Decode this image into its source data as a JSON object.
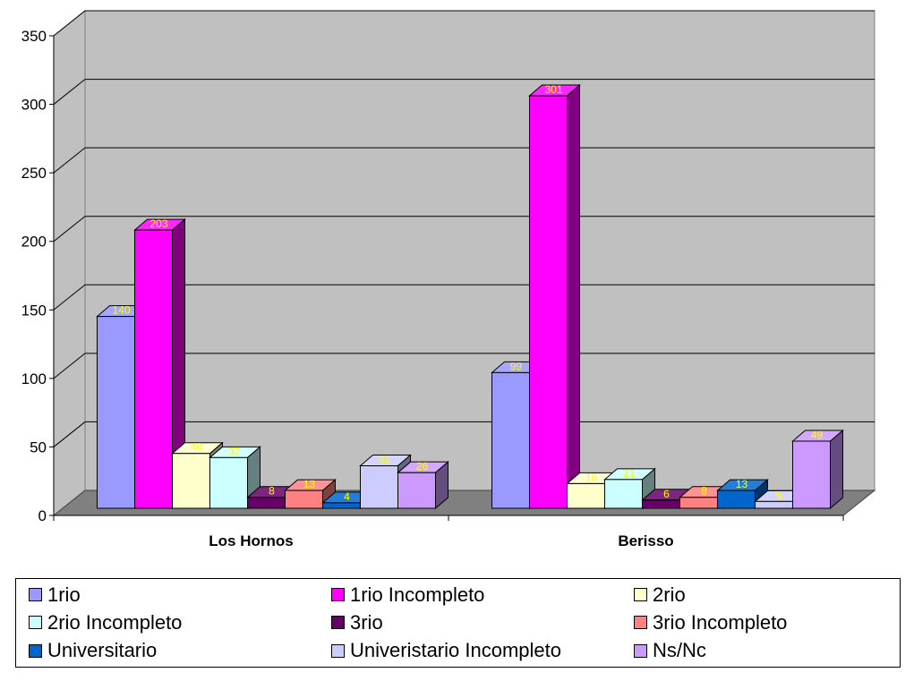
{
  "chart_data": {
    "type": "bar",
    "title": "",
    "xlabel": "",
    "ylabel": "",
    "ylim": [
      0,
      350
    ],
    "yticks": [
      0,
      50,
      100,
      150,
      200,
      250,
      300,
      350
    ],
    "grid": true,
    "legend_position": "bottom",
    "categories": [
      "Los Hornos",
      "Berisso"
    ],
    "series": [
      {
        "name": "1rio",
        "values": [
          140,
          99
        ],
        "color": "#9999ff"
      },
      {
        "name": "1rio Incompleto",
        "values": [
          203,
          301
        ],
        "color": "#ff00ff"
      },
      {
        "name": "2rio",
        "values": [
          40,
          18
        ],
        "color": "#ffffcc"
      },
      {
        "name": "2rio Incompleto",
        "values": [
          37,
          21
        ],
        "color": "#ccffff"
      },
      {
        "name": "3rio",
        "values": [
          8,
          6
        ],
        "color": "#660066"
      },
      {
        "name": "3rio Incompleto",
        "values": [
          13,
          8
        ],
        "color": "#ff8080"
      },
      {
        "name": "Universitario",
        "values": [
          4,
          13
        ],
        "color": "#0066cc"
      },
      {
        "name": "Univeristario Incompleto",
        "values": [
          31,
          5
        ],
        "color": "#ccccff"
      },
      {
        "name": "Ns/Nc",
        "values": [
          26,
          49
        ],
        "color": "#cc99ff"
      }
    ]
  }
}
